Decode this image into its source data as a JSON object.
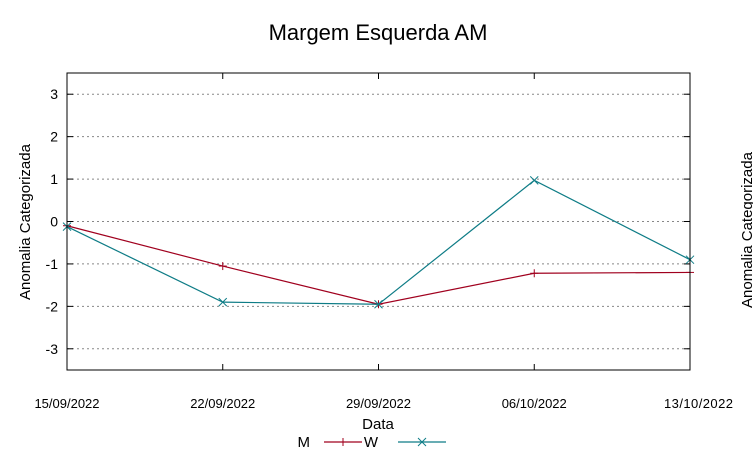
{
  "chart_data": {
    "type": "line",
    "title": "Margem Esquerda AM",
    "xlabel": "Data",
    "ylabel": "Anomalia Categorizada",
    "right_ylabel_fragment": "Anomalia Categorizada",
    "x": [
      "15/09/2022",
      "22/09/2022",
      "29/09/2022",
      "06/10/2022",
      "13/10/2022"
    ],
    "x_tick_labels": [
      "15/09/2022",
      "22/09/2022",
      "29/09/2022",
      "06/10/2022",
      "13/10/2022"
    ],
    "ylim": [
      -3.5,
      3.5
    ],
    "y_ticks": [
      3,
      2,
      1,
      0,
      -1,
      -2,
      -3
    ],
    "y_tick_labels": [
      "3",
      "2",
      "1",
      "0",
      "-1",
      "-2",
      "-3"
    ],
    "grid": "horizontal dotted",
    "legend_position": "bottom-center",
    "series": [
      {
        "name": "M",
        "color": "#a0001e",
        "marker": "plus",
        "values": [
          -0.1,
          -1.05,
          -1.95,
          -1.22,
          -1.2
        ]
      },
      {
        "name": "W",
        "color": "#0e7c86",
        "marker": "x",
        "values": [
          -0.12,
          -1.9,
          -1.95,
          0.97,
          -0.9
        ]
      }
    ]
  }
}
